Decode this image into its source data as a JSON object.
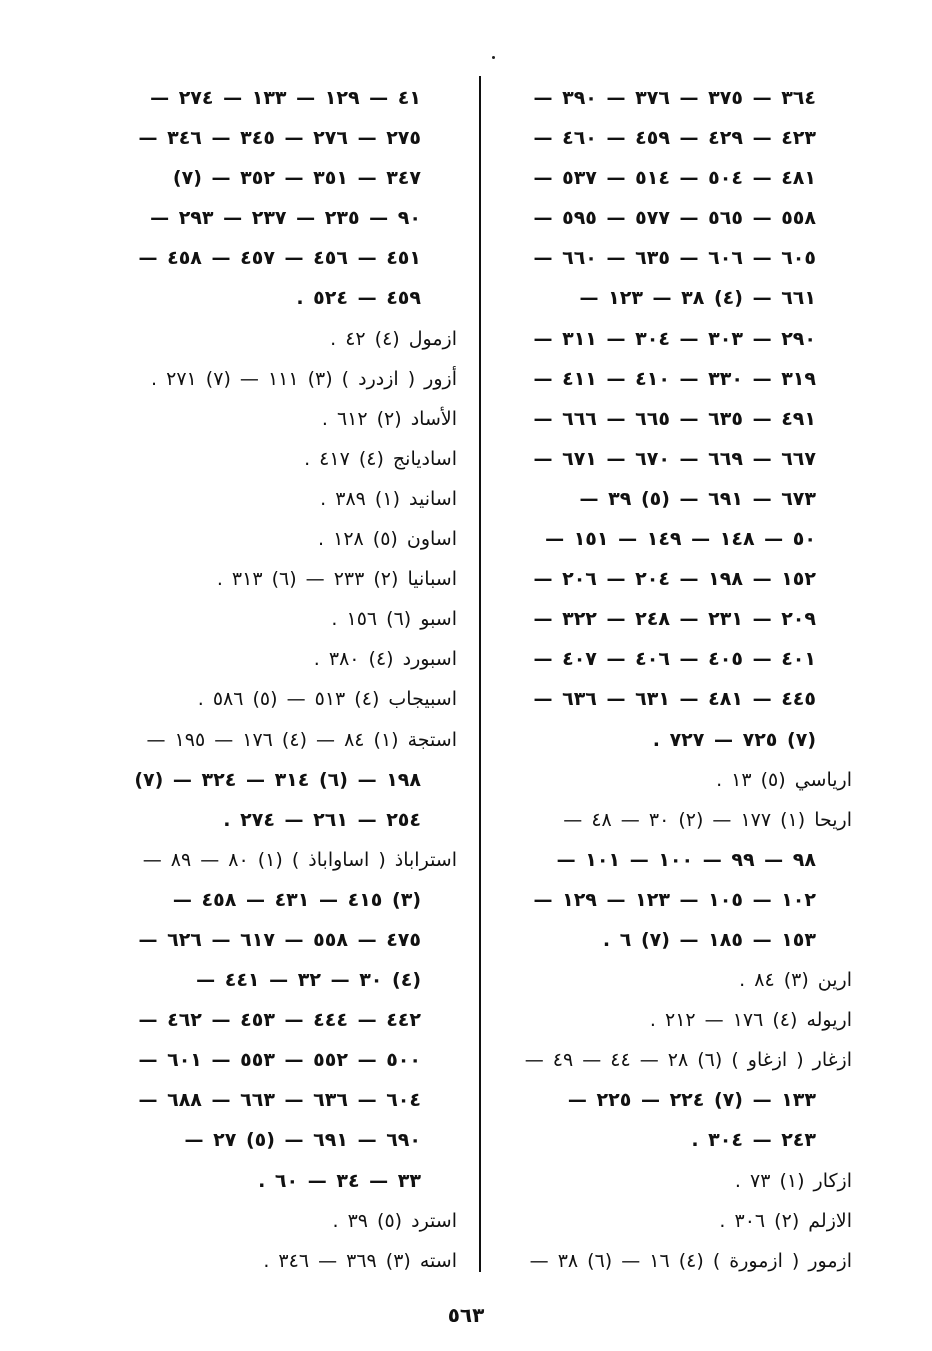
{
  "page_number": "٥٦٣",
  "columns": {
    "right": [
      {
        "text": "٣٦٤ — ٣٧٥ — ٣٧٦ — ٣٩٠ —",
        "head": false
      },
      {
        "text": "٤٢٣ — ٤٢٩ — ٤٥٩ — ٤٦٠ —",
        "head": false
      },
      {
        "text": "٤٨١ — ٥٠٤ — ٥١٤ — ٥٣٧ —",
        "head": false
      },
      {
        "text": "٥٥٨ — ٥٦٥ — ٥٧٧ — ٥٩٥ —",
        "head": false
      },
      {
        "text": "٦٠٥ — ٦٠٦ — ٦٣٥ — ٦٦٠ —",
        "head": false
      },
      {
        "text": "٦٦١ — (٤) ٣٨ — ١٢٣ —",
        "head": false
      },
      {
        "text": "٢٩٠ — ٣٠٣ — ٣٠٤ — ٣١١ —",
        "head": false
      },
      {
        "text": "٣١٩ — ٣٣٠ — ٤١٠ — ٤١١ —",
        "head": false
      },
      {
        "text": "٤٩١ — ٦٣٥ — ٦٦٥ — ٦٦٦ —",
        "head": false
      },
      {
        "text": "٦٦٧ — ٦٦٩ — ٦٧٠ — ٦٧١ —",
        "head": false
      },
      {
        "text": "٦٧٣ — ٦٩١ — (٥) ٣٩ —",
        "head": false
      },
      {
        "text": "٥٠ — ١٤٨ — ١٤٩ — ١٥١ —",
        "head": false
      },
      {
        "text": "١٥٢ — ١٩٨ — ٢٠٤ — ٢٠٦ —",
        "head": false
      },
      {
        "text": "٢٠٩ — ٢٣١ — ٢٤٨ — ٣٢٢ —",
        "head": false
      },
      {
        "text": "٤٠١ — ٤٠٥ — ٤٠٦ — ٤٠٧ —",
        "head": false
      },
      {
        "text": "٤٤٥ — ٤٨١ — ٦٣١ — ٦٣٦ —",
        "head": false
      },
      {
        "text": "(٧) ٧٢٥ — ٧٢٧ .",
        "head": false
      },
      {
        "text": "ارياسي (٥) ١٣ .",
        "head": true
      },
      {
        "text": "اريحا (١) ١٧٧ — (٢) ٣٠ — ٤٨ —",
        "head": true
      },
      {
        "text": "٩٨ — ٩٩ — ١٠٠ — ١٠١ —",
        "head": false
      },
      {
        "text": "١٠٢ — ١٠٥ — ١٢٣ — ١٢٩ —",
        "head": false
      },
      {
        "text": "١٥٣ — ١٨٥ — (٧) ٦ .",
        "head": false
      },
      {
        "text": "ارين (٣) ٨٤ .",
        "head": true
      },
      {
        "text": "اريوله (٤) ١٧٦ — ٢١٢ .",
        "head": true
      },
      {
        "text": "ازغار ( ازغاو ) (٦) ٢٨ — ٤٤ — ٤٩ —",
        "head": true
      },
      {
        "text": "١٣٣ — (٧) ٢٢٤ — ٢٢٥ —",
        "head": false
      },
      {
        "text": "٢٤٣ — ٣٠٤ .",
        "head": false
      },
      {
        "text": "ازكار (١) ٧٣ .",
        "head": true
      },
      {
        "text": "الازلم (٢) ٣٠٦ .",
        "head": true
      },
      {
        "text": "ازمور ( ازمورة ) (٤) ١٦ — (٦) ٣٨ —",
        "head": true
      }
    ],
    "left": [
      {
        "text": "٤١ — ١٢٩ — ١٣٣ — ٢٧٤ —",
        "head": false
      },
      {
        "text": "٢٧٥ — ٢٧٦ — ٣٤٥ — ٣٤٦ —",
        "head": false
      },
      {
        "text": "٣٤٧ — ٣٥١ — ٣٥٢ — (٧)",
        "head": false
      },
      {
        "text": "٩٠ — ٢٣٥ — ٢٣٧ — ٢٩٣ —",
        "head": false
      },
      {
        "text": "٤٥١ — ٤٥٦ — ٤٥٧ — ٤٥٨ —",
        "head": false
      },
      {
        "text": "٤٥٩ — ٥٢٤ .",
        "head": false
      },
      {
        "text": "ازمول (٤) ٤٢ .",
        "head": true
      },
      {
        "text": "أزور ( ازدرد ) (٣) ١١١ — (٧) ٢٧١ .",
        "head": true
      },
      {
        "text": "الأساد (٢) ٦١٢ .",
        "head": true
      },
      {
        "text": "اساديانج (٤) ٤١٧ .",
        "head": true
      },
      {
        "text": "اسانيد (١) ٣٨٩ .",
        "head": true
      },
      {
        "text": "اساون (٥) ١٢٨ .",
        "head": true
      },
      {
        "text": "اسبانيا (٢) ٢٣٣ — (٦) ٣١٣ .",
        "head": true
      },
      {
        "text": "اسبو (٦) ١٥٦ .",
        "head": true
      },
      {
        "text": "اسبورد (٤) ٣٨٠ .",
        "head": true
      },
      {
        "text": "اسبيجاب (٤) ٥١٣ — (٥) ٥٨٦ .",
        "head": true
      },
      {
        "text": "استجة (١) ٨٤ — (٤) ١٧٦ — ١٩٥ —",
        "head": true
      },
      {
        "text": "١٩٨ — (٦) ٣١٤ — ٣٢٤ — (٧)",
        "head": false
      },
      {
        "text": "٢٥٤ — ٢٦١ — ٢٧٤ .",
        "head": false
      },
      {
        "text": "استراباذ ( اساواباذ ) (١) ٨٠ — ٨٩ —",
        "head": true
      },
      {
        "text": "(٣) ٤١٥ — ٤٣١ — ٤٥٨ —",
        "head": false
      },
      {
        "text": "٤٧٥ — ٥٥٨ — ٦١٧ — ٦٢٦ —",
        "head": false
      },
      {
        "text": "(٤) ٣٠ — ٣٢ — ٤٤١ —",
        "head": false
      },
      {
        "text": "٤٤٢ — ٤٤٤ — ٤٥٣ — ٤٦٢ —",
        "head": false
      },
      {
        "text": "٥٠٠ — ٥٥٢ — ٥٥٣ — ٦٠١ —",
        "head": false
      },
      {
        "text": "٦٠٤ — ٦٣٦ — ٦٦٣ — ٦٨٨ —",
        "head": false
      },
      {
        "text": "٦٩٠ — ٦٩١ — (٥) ٢٧ —",
        "head": false
      },
      {
        "text": "٣٣ — ٣٤ — ٦٠ .",
        "head": false
      },
      {
        "text": "استرد (٥) ٣٩ .",
        "head": true
      },
      {
        "text": "استه (٣) ٣٦٩ — ٣٤٦ .",
        "head": true
      }
    ]
  }
}
